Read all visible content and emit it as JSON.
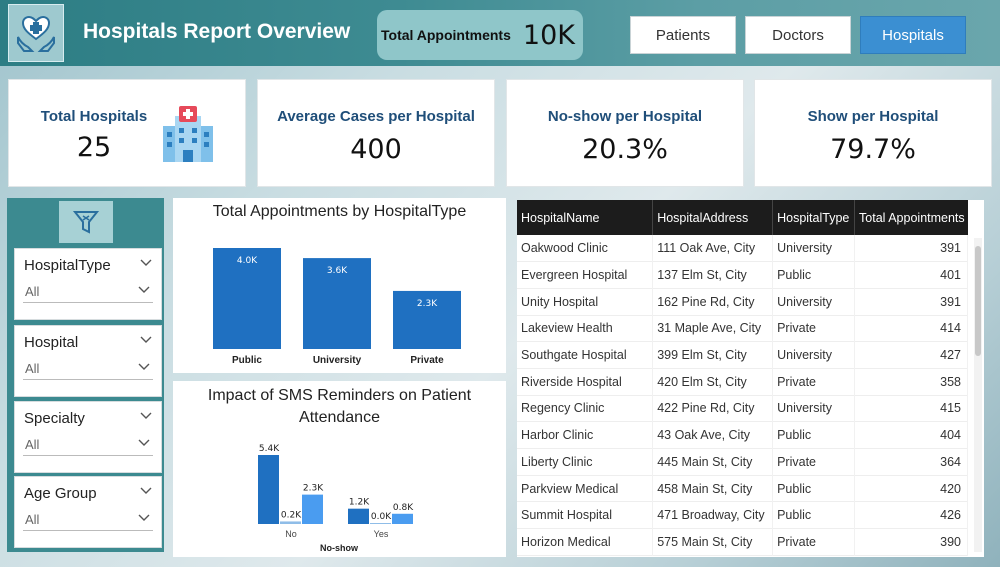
{
  "header": {
    "title": "Hospitals Report Overview",
    "logo_icon": "hospital-care-hands-icon",
    "total_appointments": {
      "label": "Total Appointments",
      "value": "10K"
    },
    "nav": [
      {
        "label": "Patients",
        "active": false
      },
      {
        "label": "Doctors",
        "active": false
      },
      {
        "label": "Hospitals",
        "active": true
      }
    ]
  },
  "kpis": [
    {
      "label": "Total Hospitals",
      "value": "25",
      "icon": "hospital-building-icon"
    },
    {
      "label": "Average Cases per Hospital",
      "value": "400"
    },
    {
      "label": "No-show per Hospital",
      "value": "20.3%"
    },
    {
      "label": "Show per Hospital",
      "value": "79.7%"
    }
  ],
  "filters": {
    "icon": "funnel-clear-icon",
    "slicers": [
      {
        "title": "HospitalType",
        "value": "All"
      },
      {
        "title": "Hospital",
        "value": "All"
      },
      {
        "title": "Specialty",
        "value": "All"
      },
      {
        "title": "Age Group",
        "value": "All"
      }
    ]
  },
  "chart_data": [
    {
      "type": "bar",
      "title": "Total Appointments by HospitalType",
      "categories": [
        "Public",
        "University",
        "Private"
      ],
      "values": [
        4000,
        3600,
        2300
      ],
      "labels": [
        "4.0K",
        "3.6K",
        "2.3K"
      ],
      "color": "#1f70c1",
      "xlabel": "",
      "ylabel": ""
    },
    {
      "type": "bar",
      "title": "Impact of SMS Reminders on Patient Attendance",
      "xlabel": "No-show",
      "categories": [
        "No",
        "Yes"
      ],
      "series": [
        {
          "values": [
            5400,
            1200
          ],
          "labels": [
            "5.4K",
            "1.2K"
          ],
          "color": "#1f70c1"
        },
        {
          "values": [
            200,
            0
          ],
          "labels": [
            "0.2K",
            "0.0K"
          ],
          "color": "#8fbde8"
        },
        {
          "values": [
            2300,
            800
          ],
          "labels": [
            "2.3K",
            "0.8K"
          ],
          "color": "#4a9cf0"
        }
      ]
    }
  ],
  "table": {
    "columns": [
      "HospitalName",
      "HospitalAddress",
      "HospitalType",
      "Total Appointments"
    ],
    "rows": [
      [
        "Oakwood Clinic",
        "111 Oak Ave, City",
        "University",
        "391"
      ],
      [
        "Evergreen Hospital",
        "137 Elm St, City",
        "Public",
        "401"
      ],
      [
        "Unity Hospital",
        "162 Pine Rd, City",
        "University",
        "391"
      ],
      [
        "Lakeview Health",
        "31 Maple Ave, City",
        "Private",
        "414"
      ],
      [
        "Southgate Hospital",
        "399 Elm St, City",
        "University",
        "427"
      ],
      [
        "Riverside Hospital",
        "420 Elm St, City",
        "Private",
        "358"
      ],
      [
        "Regency Clinic",
        "422 Pine Rd, City",
        "University",
        "415"
      ],
      [
        "Harbor Clinic",
        "43 Oak Ave, City",
        "Public",
        "404"
      ],
      [
        "Liberty Clinic",
        "445 Main St, City",
        "Private",
        "364"
      ],
      [
        "Parkview Medical",
        "458 Main St, City",
        "Public",
        "420"
      ],
      [
        "Summit Hospital",
        "471 Broadway, City",
        "Public",
        "426"
      ],
      [
        "Horizon Medical",
        "575 Main St, City",
        "Private",
        "390"
      ]
    ]
  }
}
